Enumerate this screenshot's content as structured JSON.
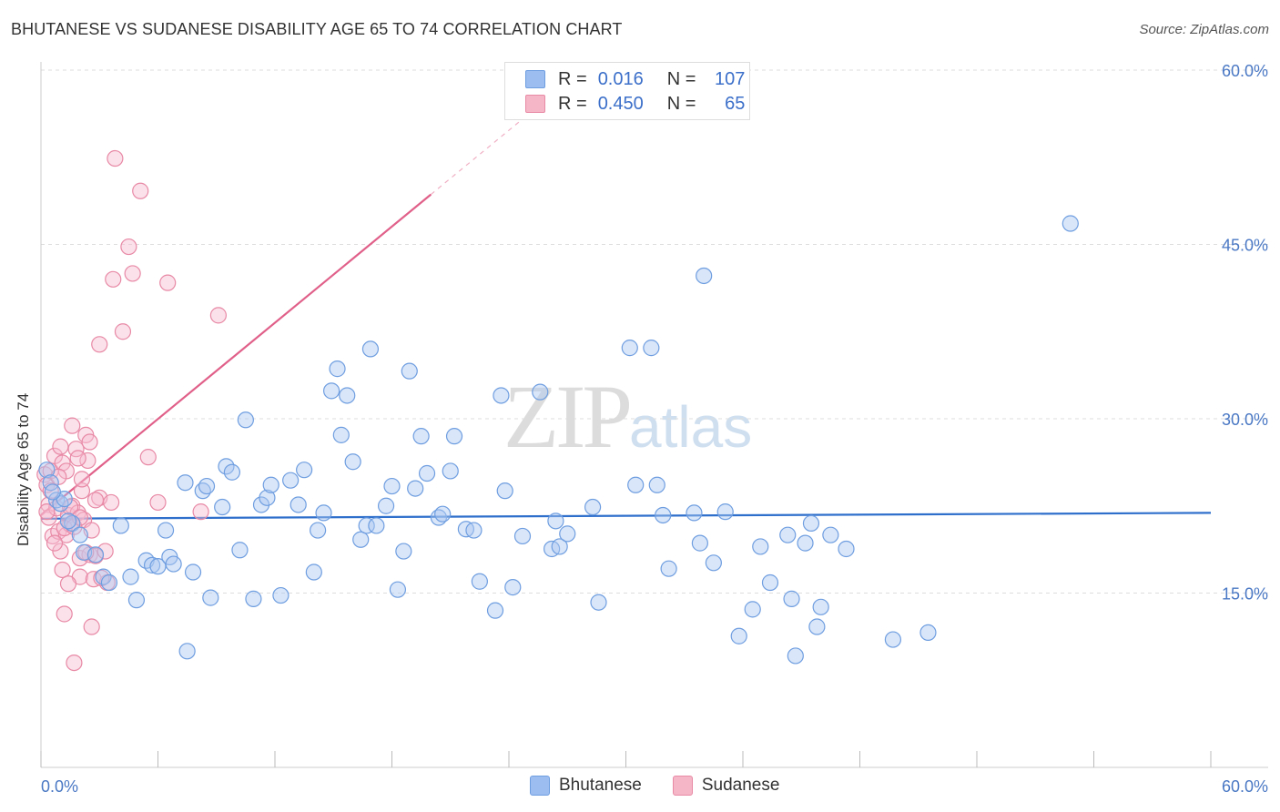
{
  "header": {
    "title": "BHUTANESE VS SUDANESE DISABILITY AGE 65 TO 74 CORRELATION CHART",
    "source": "Source: ZipAtlas.com"
  },
  "watermark": {
    "zip": "ZIP",
    "atlas": "atlas"
  },
  "legend": {
    "rows": [
      {
        "r_label": "R =",
        "r_value": "0.016",
        "n_label": "N =",
        "n_value": "107",
        "color": "#9cbdf0",
        "border": "#6f9ee0"
      },
      {
        "r_label": "R =",
        "r_value": "0.450",
        "n_label": "N =",
        "n_value": "65",
        "color": "#f5b6c8",
        "border": "#e889a6"
      }
    ]
  },
  "bottom_legend": {
    "series1": "Bhutanese",
    "series2": "Sudanese"
  },
  "chart_data": {
    "type": "scatter",
    "title": "BHUTANESE VS SUDANESE DISABILITY AGE 65 TO 74 CORRELATION CHART",
    "xlabel": "",
    "ylabel": "Disability Age 65 to 74",
    "xlim": [
      0,
      60
    ],
    "ylim": [
      0,
      60
    ],
    "x_tick_labels": [
      "0.0%",
      "60.0%"
    ],
    "y_ticks": [
      15,
      30,
      45,
      60
    ],
    "y_tick_labels": [
      "15.0%",
      "30.0%",
      "45.0%",
      "60.0%"
    ],
    "grid": true,
    "legend_position": "top-center",
    "series": [
      {
        "name": "Bhutanese",
        "color": "#6f9ee0",
        "fill": "#aac8f2",
        "trend": {
          "x": [
            0,
            60
          ],
          "y": [
            21.4,
            21.9
          ],
          "color": "#2f6fcc"
        },
        "points": [
          [
            0.3,
            25.6
          ],
          [
            0.5,
            24.5
          ],
          [
            0.8,
            23.0
          ],
          [
            1.0,
            22.7
          ],
          [
            1.2,
            23.1
          ],
          [
            1.6,
            21.0
          ],
          [
            2.0,
            20.0
          ],
          [
            2.2,
            18.5
          ],
          [
            2.8,
            18.3
          ],
          [
            3.2,
            16.4
          ],
          [
            3.5,
            15.9
          ],
          [
            4.1,
            20.8
          ],
          [
            4.6,
            16.4
          ],
          [
            4.9,
            14.4
          ],
          [
            5.4,
            17.8
          ],
          [
            5.7,
            17.4
          ],
          [
            6.0,
            17.3
          ],
          [
            6.4,
            20.4
          ],
          [
            6.6,
            18.1
          ],
          [
            6.8,
            17.5
          ],
          [
            7.4,
            24.5
          ],
          [
            7.5,
            10.0
          ],
          [
            7.8,
            16.8
          ],
          [
            8.3,
            23.8
          ],
          [
            8.5,
            24.2
          ],
          [
            8.7,
            14.6
          ],
          [
            9.3,
            22.4
          ],
          [
            9.5,
            25.9
          ],
          [
            9.8,
            25.4
          ],
          [
            10.2,
            18.7
          ],
          [
            10.5,
            29.9
          ],
          [
            10.9,
            14.5
          ],
          [
            11.3,
            22.6
          ],
          [
            11.6,
            23.2
          ],
          [
            11.8,
            24.3
          ],
          [
            12.3,
            14.8
          ],
          [
            12.8,
            24.7
          ],
          [
            13.2,
            22.6
          ],
          [
            13.5,
            25.6
          ],
          [
            14.0,
            16.8
          ],
          [
            14.2,
            20.4
          ],
          [
            14.5,
            21.9
          ],
          [
            14.9,
            32.4
          ],
          [
            15.2,
            34.3
          ],
          [
            15.4,
            28.6
          ],
          [
            15.7,
            32.0
          ],
          [
            16.0,
            26.3
          ],
          [
            16.4,
            19.6
          ],
          [
            16.7,
            20.8
          ],
          [
            16.9,
            36.0
          ],
          [
            17.2,
            20.8
          ],
          [
            17.7,
            22.5
          ],
          [
            18.0,
            24.2
          ],
          [
            18.3,
            15.3
          ],
          [
            18.6,
            18.6
          ],
          [
            18.9,
            34.1
          ],
          [
            19.2,
            24.0
          ],
          [
            19.5,
            28.5
          ],
          [
            19.8,
            25.3
          ],
          [
            20.4,
            21.5
          ],
          [
            20.6,
            21.8
          ],
          [
            21.0,
            25.5
          ],
          [
            21.2,
            28.5
          ],
          [
            21.8,
            20.5
          ],
          [
            22.2,
            20.4
          ],
          [
            22.5,
            16.0
          ],
          [
            23.3,
            13.5
          ],
          [
            23.6,
            32.0
          ],
          [
            23.8,
            23.8
          ],
          [
            24.2,
            15.5
          ],
          [
            24.7,
            19.9
          ],
          [
            25.6,
            32.3
          ],
          [
            26.2,
            18.8
          ],
          [
            26.4,
            21.2
          ],
          [
            26.6,
            19.0
          ],
          [
            27.0,
            20.1
          ],
          [
            28.3,
            22.4
          ],
          [
            28.6,
            14.2
          ],
          [
            30.2,
            36.1
          ],
          [
            30.5,
            24.3
          ],
          [
            31.3,
            36.1
          ],
          [
            31.6,
            24.3
          ],
          [
            31.9,
            21.7
          ],
          [
            32.2,
            17.1
          ],
          [
            33.5,
            21.9
          ],
          [
            33.8,
            19.3
          ],
          [
            34.0,
            42.3
          ],
          [
            34.5,
            17.6
          ],
          [
            35.1,
            22.0
          ],
          [
            35.8,
            11.3
          ],
          [
            36.5,
            13.6
          ],
          [
            36.9,
            19.0
          ],
          [
            37.4,
            15.9
          ],
          [
            38.3,
            20.0
          ],
          [
            38.5,
            14.5
          ],
          [
            38.7,
            9.6
          ],
          [
            39.2,
            19.3
          ],
          [
            39.5,
            21.0
          ],
          [
            39.8,
            12.1
          ],
          [
            40.0,
            13.8
          ],
          [
            40.5,
            20.0
          ],
          [
            41.3,
            18.8
          ],
          [
            43.7,
            11.0
          ],
          [
            45.5,
            11.6
          ],
          [
            52.8,
            46.8
          ],
          [
            0.6,
            23.7
          ],
          [
            1.4,
            21.2
          ]
        ]
      },
      {
        "name": "Sudanese",
        "color": "#e889a6",
        "fill": "#f6bcd0",
        "trend": {
          "x": [
            0,
            20
          ],
          "y": [
            21.7,
            49.3
          ],
          "color": "#e0608a",
          "dashed_extension_to_x": 25
        },
        "points": [
          [
            0.2,
            25.2
          ],
          [
            0.3,
            24.3
          ],
          [
            0.4,
            22.6
          ],
          [
            0.4,
            21.5
          ],
          [
            0.5,
            25.5
          ],
          [
            0.6,
            19.9
          ],
          [
            0.7,
            26.8
          ],
          [
            0.8,
            22.3
          ],
          [
            0.9,
            20.3
          ],
          [
            1.0,
            27.6
          ],
          [
            1.0,
            18.6
          ],
          [
            1.1,
            26.2
          ],
          [
            1.2,
            13.2
          ],
          [
            1.3,
            25.5
          ],
          [
            1.3,
            20.0
          ],
          [
            1.4,
            21.7
          ],
          [
            1.5,
            20.9
          ],
          [
            1.6,
            22.5
          ],
          [
            1.6,
            29.4
          ],
          [
            1.7,
            9.0
          ],
          [
            1.8,
            27.4
          ],
          [
            1.9,
            21.9
          ],
          [
            2.0,
            18.0
          ],
          [
            2.0,
            16.4
          ],
          [
            2.1,
            23.8
          ],
          [
            2.1,
            24.8
          ],
          [
            2.2,
            21.3
          ],
          [
            2.3,
            28.6
          ],
          [
            2.4,
            26.4
          ],
          [
            2.5,
            28.0
          ],
          [
            2.5,
            18.3
          ],
          [
            2.6,
            12.1
          ],
          [
            2.7,
            16.2
          ],
          [
            2.8,
            18.2
          ],
          [
            3.0,
            23.2
          ],
          [
            3.0,
            36.4
          ],
          [
            3.3,
            18.6
          ],
          [
            3.4,
            15.9
          ],
          [
            3.6,
            22.8
          ],
          [
            3.7,
            42.0
          ],
          [
            3.8,
            52.4
          ],
          [
            4.2,
            37.5
          ],
          [
            4.5,
            44.8
          ],
          [
            4.7,
            42.5
          ],
          [
            5.1,
            49.6
          ],
          [
            5.5,
            26.7
          ],
          [
            6.0,
            22.8
          ],
          [
            6.5,
            41.7
          ],
          [
            8.2,
            22.0
          ],
          [
            9.1,
            38.9
          ],
          [
            0.5,
            23.8
          ],
          [
            0.9,
            25.0
          ],
          [
            1.2,
            20.6
          ],
          [
            1.5,
            22.4
          ],
          [
            1.9,
            26.6
          ],
          [
            2.3,
            18.5
          ],
          [
            2.8,
            23.0
          ],
          [
            3.1,
            16.3
          ],
          [
            0.7,
            19.3
          ],
          [
            1.1,
            17.0
          ],
          [
            0.3,
            22.0
          ],
          [
            1.7,
            20.7
          ],
          [
            2.0,
            21.5
          ],
          [
            2.6,
            20.4
          ],
          [
            1.4,
            15.8
          ]
        ]
      }
    ]
  }
}
